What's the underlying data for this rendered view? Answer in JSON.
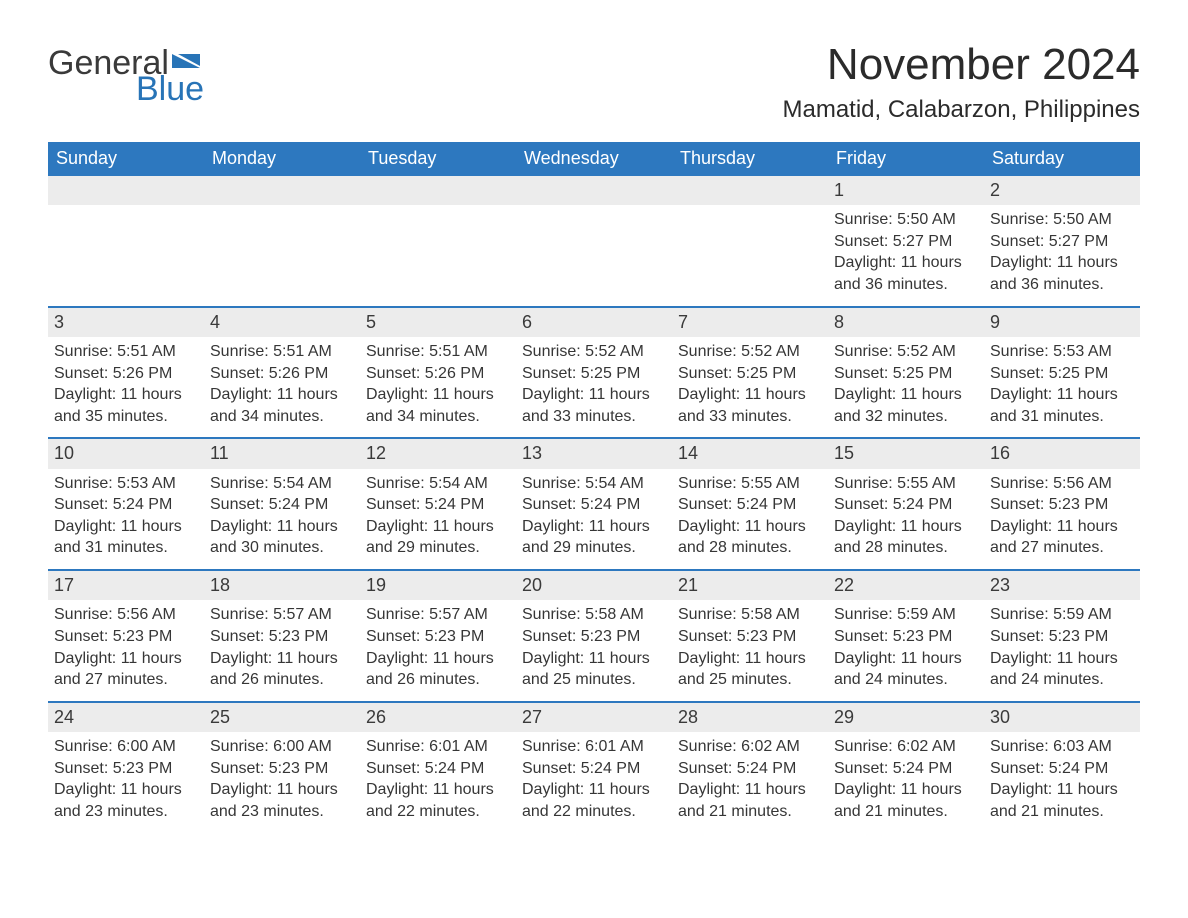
{
  "brand": {
    "word1": "General",
    "word2": "Blue",
    "text_color": "#3a3a3a",
    "accent_color": "#2874b7"
  },
  "title": "November 2024",
  "location": "Mamatid, Calabarzon, Philippines",
  "colors": {
    "header_bg": "#2d78bf",
    "header_text": "#ffffff",
    "daynum_bg": "#ececec",
    "border": "#2d78bf",
    "body_text": "#363636",
    "page_bg": "#ffffff"
  },
  "typography": {
    "title_fontsize": 44,
    "location_fontsize": 24,
    "dow_fontsize": 18,
    "daynum_fontsize": 18,
    "body_fontsize": 16
  },
  "days_of_week": [
    "Sunday",
    "Monday",
    "Tuesday",
    "Wednesday",
    "Thursday",
    "Friday",
    "Saturday"
  ],
  "weeks": [
    {
      "leading_empty": 5,
      "days": [
        {
          "n": "1",
          "sunrise": "Sunrise: 5:50 AM",
          "sunset": "Sunset: 5:27 PM",
          "daylight": "Daylight: 11 hours and 36 minutes."
        },
        {
          "n": "2",
          "sunrise": "Sunrise: 5:50 AM",
          "sunset": "Sunset: 5:27 PM",
          "daylight": "Daylight: 11 hours and 36 minutes."
        }
      ]
    },
    {
      "leading_empty": 0,
      "days": [
        {
          "n": "3",
          "sunrise": "Sunrise: 5:51 AM",
          "sunset": "Sunset: 5:26 PM",
          "daylight": "Daylight: 11 hours and 35 minutes."
        },
        {
          "n": "4",
          "sunrise": "Sunrise: 5:51 AM",
          "sunset": "Sunset: 5:26 PM",
          "daylight": "Daylight: 11 hours and 34 minutes."
        },
        {
          "n": "5",
          "sunrise": "Sunrise: 5:51 AM",
          "sunset": "Sunset: 5:26 PM",
          "daylight": "Daylight: 11 hours and 34 minutes."
        },
        {
          "n": "6",
          "sunrise": "Sunrise: 5:52 AM",
          "sunset": "Sunset: 5:25 PM",
          "daylight": "Daylight: 11 hours and 33 minutes."
        },
        {
          "n": "7",
          "sunrise": "Sunrise: 5:52 AM",
          "sunset": "Sunset: 5:25 PM",
          "daylight": "Daylight: 11 hours and 33 minutes."
        },
        {
          "n": "8",
          "sunrise": "Sunrise: 5:52 AM",
          "sunset": "Sunset: 5:25 PM",
          "daylight": "Daylight: 11 hours and 32 minutes."
        },
        {
          "n": "9",
          "sunrise": "Sunrise: 5:53 AM",
          "sunset": "Sunset: 5:25 PM",
          "daylight": "Daylight: 11 hours and 31 minutes."
        }
      ]
    },
    {
      "leading_empty": 0,
      "days": [
        {
          "n": "10",
          "sunrise": "Sunrise: 5:53 AM",
          "sunset": "Sunset: 5:24 PM",
          "daylight": "Daylight: 11 hours and 31 minutes."
        },
        {
          "n": "11",
          "sunrise": "Sunrise: 5:54 AM",
          "sunset": "Sunset: 5:24 PM",
          "daylight": "Daylight: 11 hours and 30 minutes."
        },
        {
          "n": "12",
          "sunrise": "Sunrise: 5:54 AM",
          "sunset": "Sunset: 5:24 PM",
          "daylight": "Daylight: 11 hours and 29 minutes."
        },
        {
          "n": "13",
          "sunrise": "Sunrise: 5:54 AM",
          "sunset": "Sunset: 5:24 PM",
          "daylight": "Daylight: 11 hours and 29 minutes."
        },
        {
          "n": "14",
          "sunrise": "Sunrise: 5:55 AM",
          "sunset": "Sunset: 5:24 PM",
          "daylight": "Daylight: 11 hours and 28 minutes."
        },
        {
          "n": "15",
          "sunrise": "Sunrise: 5:55 AM",
          "sunset": "Sunset: 5:24 PM",
          "daylight": "Daylight: 11 hours and 28 minutes."
        },
        {
          "n": "16",
          "sunrise": "Sunrise: 5:56 AM",
          "sunset": "Sunset: 5:23 PM",
          "daylight": "Daylight: 11 hours and 27 minutes."
        }
      ]
    },
    {
      "leading_empty": 0,
      "days": [
        {
          "n": "17",
          "sunrise": "Sunrise: 5:56 AM",
          "sunset": "Sunset: 5:23 PM",
          "daylight": "Daylight: 11 hours and 27 minutes."
        },
        {
          "n": "18",
          "sunrise": "Sunrise: 5:57 AM",
          "sunset": "Sunset: 5:23 PM",
          "daylight": "Daylight: 11 hours and 26 minutes."
        },
        {
          "n": "19",
          "sunrise": "Sunrise: 5:57 AM",
          "sunset": "Sunset: 5:23 PM",
          "daylight": "Daylight: 11 hours and 26 minutes."
        },
        {
          "n": "20",
          "sunrise": "Sunrise: 5:58 AM",
          "sunset": "Sunset: 5:23 PM",
          "daylight": "Daylight: 11 hours and 25 minutes."
        },
        {
          "n": "21",
          "sunrise": "Sunrise: 5:58 AM",
          "sunset": "Sunset: 5:23 PM",
          "daylight": "Daylight: 11 hours and 25 minutes."
        },
        {
          "n": "22",
          "sunrise": "Sunrise: 5:59 AM",
          "sunset": "Sunset: 5:23 PM",
          "daylight": "Daylight: 11 hours and 24 minutes."
        },
        {
          "n": "23",
          "sunrise": "Sunrise: 5:59 AM",
          "sunset": "Sunset: 5:23 PM",
          "daylight": "Daylight: 11 hours and 24 minutes."
        }
      ]
    },
    {
      "leading_empty": 0,
      "days": [
        {
          "n": "24",
          "sunrise": "Sunrise: 6:00 AM",
          "sunset": "Sunset: 5:23 PM",
          "daylight": "Daylight: 11 hours and 23 minutes."
        },
        {
          "n": "25",
          "sunrise": "Sunrise: 6:00 AM",
          "sunset": "Sunset: 5:23 PM",
          "daylight": "Daylight: 11 hours and 23 minutes."
        },
        {
          "n": "26",
          "sunrise": "Sunrise: 6:01 AM",
          "sunset": "Sunset: 5:24 PM",
          "daylight": "Daylight: 11 hours and 22 minutes."
        },
        {
          "n": "27",
          "sunrise": "Sunrise: 6:01 AM",
          "sunset": "Sunset: 5:24 PM",
          "daylight": "Daylight: 11 hours and 22 minutes."
        },
        {
          "n": "28",
          "sunrise": "Sunrise: 6:02 AM",
          "sunset": "Sunset: 5:24 PM",
          "daylight": "Daylight: 11 hours and 21 minutes."
        },
        {
          "n": "29",
          "sunrise": "Sunrise: 6:02 AM",
          "sunset": "Sunset: 5:24 PM",
          "daylight": "Daylight: 11 hours and 21 minutes."
        },
        {
          "n": "30",
          "sunrise": "Sunrise: 6:03 AM",
          "sunset": "Sunset: 5:24 PM",
          "daylight": "Daylight: 11 hours and 21 minutes."
        }
      ]
    }
  ]
}
